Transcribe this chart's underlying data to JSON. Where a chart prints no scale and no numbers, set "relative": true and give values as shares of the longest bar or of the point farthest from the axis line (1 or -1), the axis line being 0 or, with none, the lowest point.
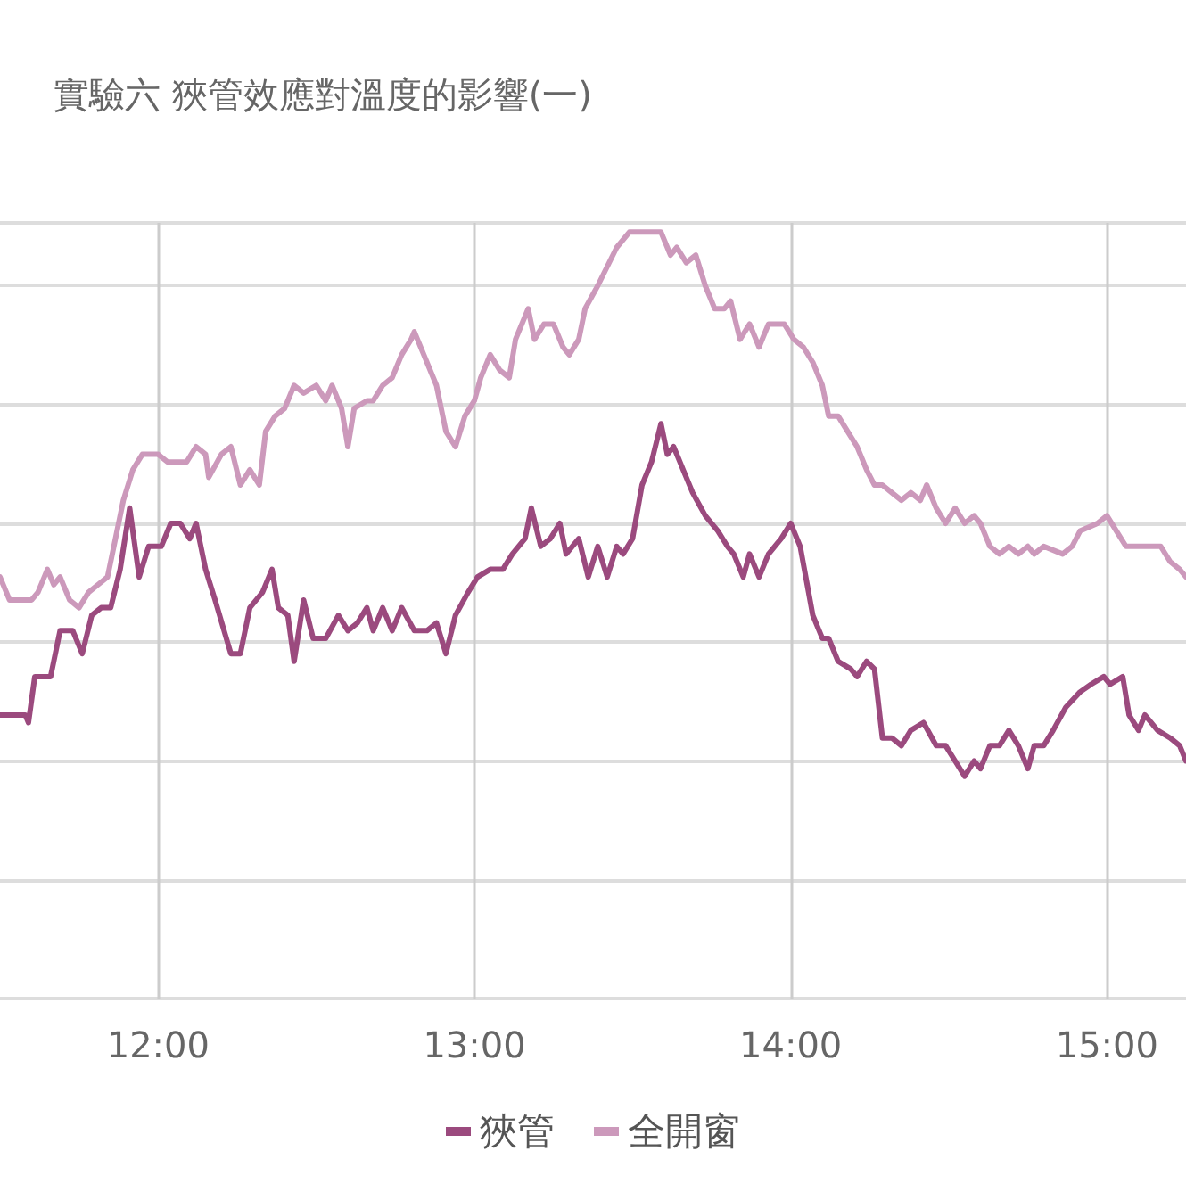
{
  "chart_data": {
    "type": "line",
    "title": "實驗六 狹管效應對溫度的影響(一)",
    "relative": true,
    "grid": true,
    "legend": "bottom",
    "marker": "none",
    "line_style": "solid",
    "tick_labels": "x",
    "xlim": [
      11.5,
      15.25
    ],
    "xticks": [
      {
        "value": 12,
        "label": "12:00"
      },
      {
        "value": 13,
        "label": "13:00"
      },
      {
        "value": 14,
        "label": "14:00"
      },
      {
        "value": 15,
        "label": "15:00"
      }
    ],
    "series": [
      {
        "name": "狹管",
        "color": "#9b4a7e",
        "x": [
          11.5,
          11.58,
          11.59,
          11.61,
          11.66,
          11.69,
          11.73,
          11.76,
          11.79,
          11.82,
          11.85,
          11.88,
          11.91,
          11.94,
          11.97,
          12.01,
          12.04,
          12.07,
          12.1,
          12.12,
          12.15,
          12.18,
          12.23,
          12.26,
          12.29,
          12.33,
          12.36,
          12.38,
          12.41,
          12.43,
          12.46,
          12.49,
          12.53,
          12.57,
          12.6,
          12.63,
          12.66,
          12.68,
          12.71,
          12.74,
          12.77,
          12.81,
          12.85,
          12.88,
          12.91,
          12.94,
          12.98,
          13.01,
          13.05,
          13.09,
          13.12,
          13.16,
          13.18,
          13.21,
          13.24,
          13.27,
          13.29,
          13.33,
          13.36,
          13.39,
          13.42,
          13.45,
          13.47,
          13.5,
          13.53,
          13.56,
          13.59,
          13.61,
          13.63,
          13.66,
          13.69,
          13.73,
          13.77,
          13.8,
          13.82,
          13.85,
          13.87,
          13.9,
          13.93,
          13.97,
          14.0,
          14.03,
          14.07,
          14.1,
          14.12,
          14.15,
          14.19,
          14.21,
          14.24,
          14.265,
          14.29,
          14.32,
          14.35,
          14.38,
          14.42,
          14.46,
          14.49,
          14.52,
          14.55,
          14.58,
          14.6,
          14.63,
          14.66,
          14.69,
          14.72,
          14.75,
          14.77,
          14.8,
          14.83,
          14.87,
          14.915,
          14.95,
          14.99,
          15.01,
          15.05,
          15.07,
          15.1,
          15.12,
          15.16,
          15.2,
          15.23,
          15.25
        ],
        "values": [
          0.37,
          0.37,
          0.36,
          0.42,
          0.42,
          0.48,
          0.48,
          0.45,
          0.5,
          0.51,
          0.51,
          0.56,
          0.64,
          0.55,
          0.59,
          0.59,
          0.62,
          0.62,
          0.6,
          0.62,
          0.56,
          0.52,
          0.45,
          0.45,
          0.51,
          0.53,
          0.56,
          0.51,
          0.5,
          0.44,
          0.52,
          0.47,
          0.47,
          0.5,
          0.48,
          0.49,
          0.51,
          0.48,
          0.51,
          0.48,
          0.51,
          0.48,
          0.48,
          0.49,
          0.45,
          0.5,
          0.53,
          0.55,
          0.56,
          0.56,
          0.58,
          0.6,
          0.64,
          0.59,
          0.6,
          0.62,
          0.58,
          0.6,
          0.55,
          0.59,
          0.55,
          0.59,
          0.58,
          0.6,
          0.67,
          0.7,
          0.75,
          0.71,
          0.72,
          0.69,
          0.66,
          0.63,
          0.61,
          0.59,
          0.58,
          0.55,
          0.58,
          0.55,
          0.58,
          0.6,
          0.62,
          0.59,
          0.5,
          0.47,
          0.47,
          0.44,
          0.43,
          0.42,
          0.44,
          0.43,
          0.34,
          0.34,
          0.33,
          0.35,
          0.36,
          0.33,
          0.33,
          0.31,
          0.29,
          0.31,
          0.3,
          0.33,
          0.33,
          0.35,
          0.33,
          0.3,
          0.33,
          0.33,
          0.35,
          0.38,
          0.4,
          0.41,
          0.42,
          0.41,
          0.42,
          0.37,
          0.35,
          0.37,
          0.35,
          0.34,
          0.33,
          0.31
        ]
      },
      {
        "name": "全開窗",
        "color": "#cc99bb",
        "x": [
          11.5,
          11.53,
          11.55,
          11.6,
          11.62,
          11.65,
          11.67,
          11.69,
          11.72,
          11.75,
          11.78,
          11.81,
          11.84,
          11.86,
          11.89,
          11.92,
          11.95,
          12.0,
          12.03,
          12.09,
          12.12,
          12.15,
          12.16,
          12.2,
          12.23,
          12.26,
          12.29,
          12.32,
          12.34,
          12.37,
          12.4,
          12.43,
          12.46,
          12.5,
          12.53,
          12.55,
          12.58,
          12.6,
          12.62,
          12.66,
          12.68,
          12.71,
          12.74,
          12.77,
          12.8,
          12.81,
          12.84,
          12.88,
          12.91,
          12.94,
          12.97,
          13.0,
          13.02,
          13.05,
          13.08,
          13.11,
          13.13,
          13.17,
          13.19,
          13.22,
          13.25,
          13.28,
          13.3,
          13.33,
          13.35,
          13.39,
          13.45,
          13.49,
          13.59,
          13.62,
          13.64,
          13.67,
          13.7,
          13.73,
          13.76,
          13.79,
          13.81,
          13.84,
          13.87,
          13.9,
          13.93,
          13.98,
          14.01,
          14.04,
          14.07,
          14.1,
          14.12,
          14.15,
          14.18,
          14.21,
          14.24,
          14.265,
          14.29,
          14.32,
          14.35,
          14.38,
          14.41,
          14.43,
          14.46,
          14.49,
          14.52,
          14.55,
          14.58,
          14.6,
          14.63,
          14.66,
          14.69,
          14.72,
          14.75,
          14.77,
          14.8,
          14.86,
          14.89,
          14.915,
          14.97,
          15.0,
          15.03,
          15.06,
          15.17,
          15.2,
          15.23,
          15.25
        ],
        "values": [
          0.55,
          0.52,
          0.52,
          0.52,
          0.53,
          0.56,
          0.54,
          0.55,
          0.52,
          0.51,
          0.53,
          0.54,
          0.55,
          0.59,
          0.65,
          0.69,
          0.71,
          0.71,
          0.7,
          0.7,
          0.72,
          0.71,
          0.68,
          0.71,
          0.72,
          0.67,
          0.69,
          0.67,
          0.74,
          0.76,
          0.77,
          0.8,
          0.79,
          0.8,
          0.78,
          0.8,
          0.77,
          0.72,
          0.77,
          0.78,
          0.78,
          0.8,
          0.81,
          0.84,
          0.86,
          0.87,
          0.84,
          0.8,
          0.74,
          0.72,
          0.76,
          0.78,
          0.81,
          0.84,
          0.82,
          0.81,
          0.86,
          0.9,
          0.86,
          0.88,
          0.88,
          0.85,
          0.84,
          0.86,
          0.9,
          0.93,
          0.98,
          1.0,
          1.0,
          0.97,
          0.98,
          0.96,
          0.97,
          0.93,
          0.9,
          0.9,
          0.91,
          0.86,
          0.88,
          0.85,
          0.88,
          0.88,
          0.86,
          0.85,
          0.83,
          0.8,
          0.76,
          0.76,
          0.74,
          0.72,
          0.69,
          0.67,
          0.67,
          0.66,
          0.65,
          0.66,
          0.65,
          0.67,
          0.64,
          0.62,
          0.64,
          0.62,
          0.63,
          0.62,
          0.59,
          0.58,
          0.59,
          0.58,
          0.59,
          0.58,
          0.59,
          0.58,
          0.59,
          0.61,
          0.62,
          0.63,
          0.61,
          0.59,
          0.59,
          0.57,
          0.56,
          0.55
        ]
      }
    ]
  }
}
